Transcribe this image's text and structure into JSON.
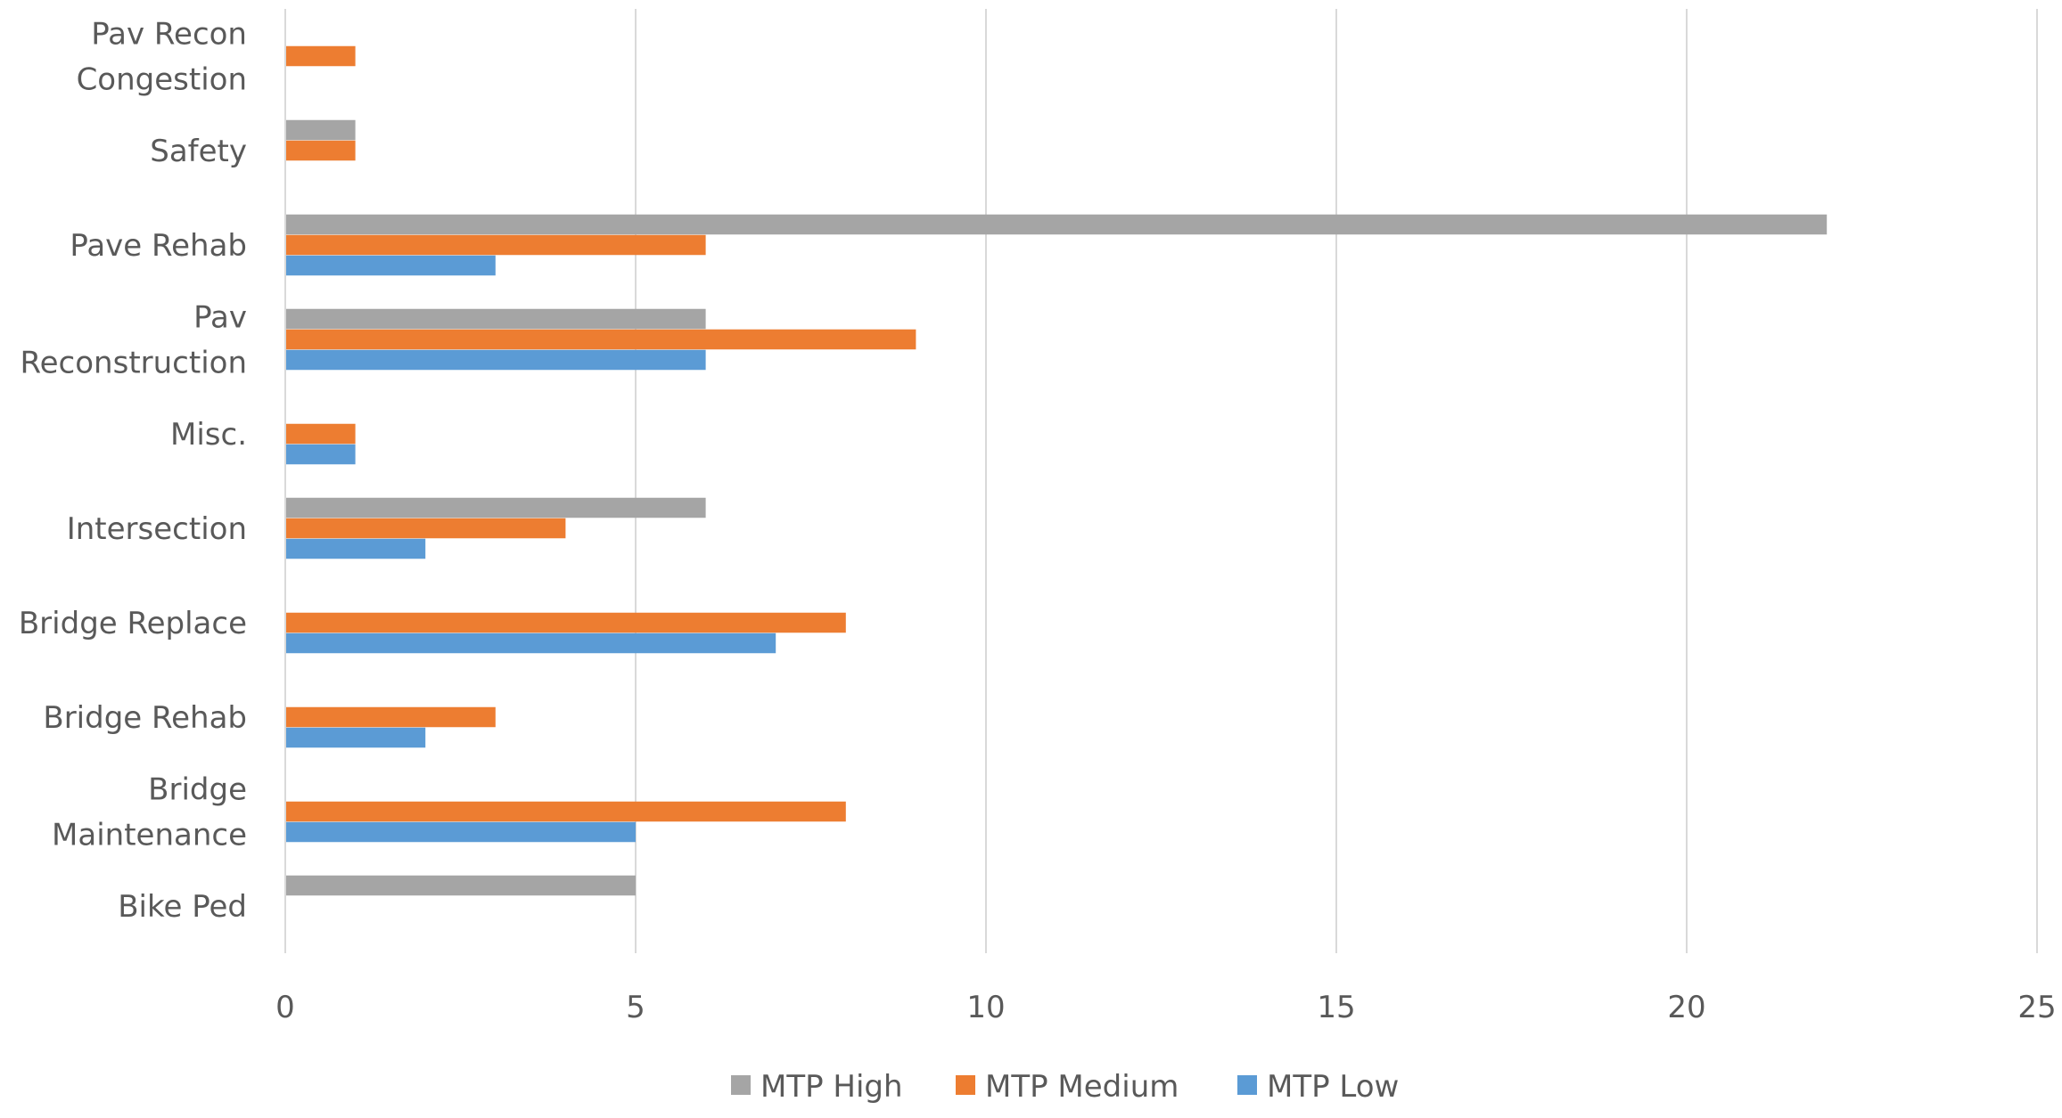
{
  "chart_data": {
    "type": "bar",
    "orientation": "horizontal",
    "title": "",
    "xlabel": "",
    "ylabel": "",
    "xlim": [
      0,
      25
    ],
    "x_ticks": [
      "0",
      "5",
      "10",
      "15",
      "20",
      "25"
    ],
    "grid": "vertical major gridlines",
    "legend_position": "bottom",
    "categories": [
      "Bike Ped",
      "Bridge Maintenance",
      "Bridge Rehab",
      "Bridge Replace",
      "Intersection",
      "Misc.",
      "Pav Reconstruction",
      "Pave Rehab",
      "Safety",
      "Pav Recon Congestion"
    ],
    "category_label_lines": [
      [
        "Bike Ped"
      ],
      [
        "Bridge",
        "Maintenance"
      ],
      [
        "Bridge Rehab"
      ],
      [
        "Bridge Replace"
      ],
      [
        "Intersection"
      ],
      [
        "Misc."
      ],
      [
        "Pav",
        "Reconstruction"
      ],
      [
        "Pave Rehab"
      ],
      [
        "Safety"
      ],
      [
        "Pav Recon",
        "Congestion"
      ]
    ],
    "series": [
      {
        "name": "MTP Low",
        "color": "#5B9BD5",
        "values": [
          0,
          5,
          2,
          7,
          2,
          1,
          6,
          3,
          0,
          0
        ]
      },
      {
        "name": "MTP Medium",
        "color": "#ED7D31",
        "values": [
          0,
          8,
          3,
          8,
          4,
          1,
          9,
          6,
          1,
          1
        ]
      },
      {
        "name": "MTP High",
        "color": "#A5A5A5",
        "values": [
          5,
          0,
          0,
          0,
          6,
          0,
          6,
          22,
          1,
          0
        ]
      }
    ],
    "legend_order": [
      "MTP High",
      "MTP Medium",
      "MTP Low"
    ],
    "axis_color": "#D9D9D9",
    "text_color": "#595959"
  }
}
